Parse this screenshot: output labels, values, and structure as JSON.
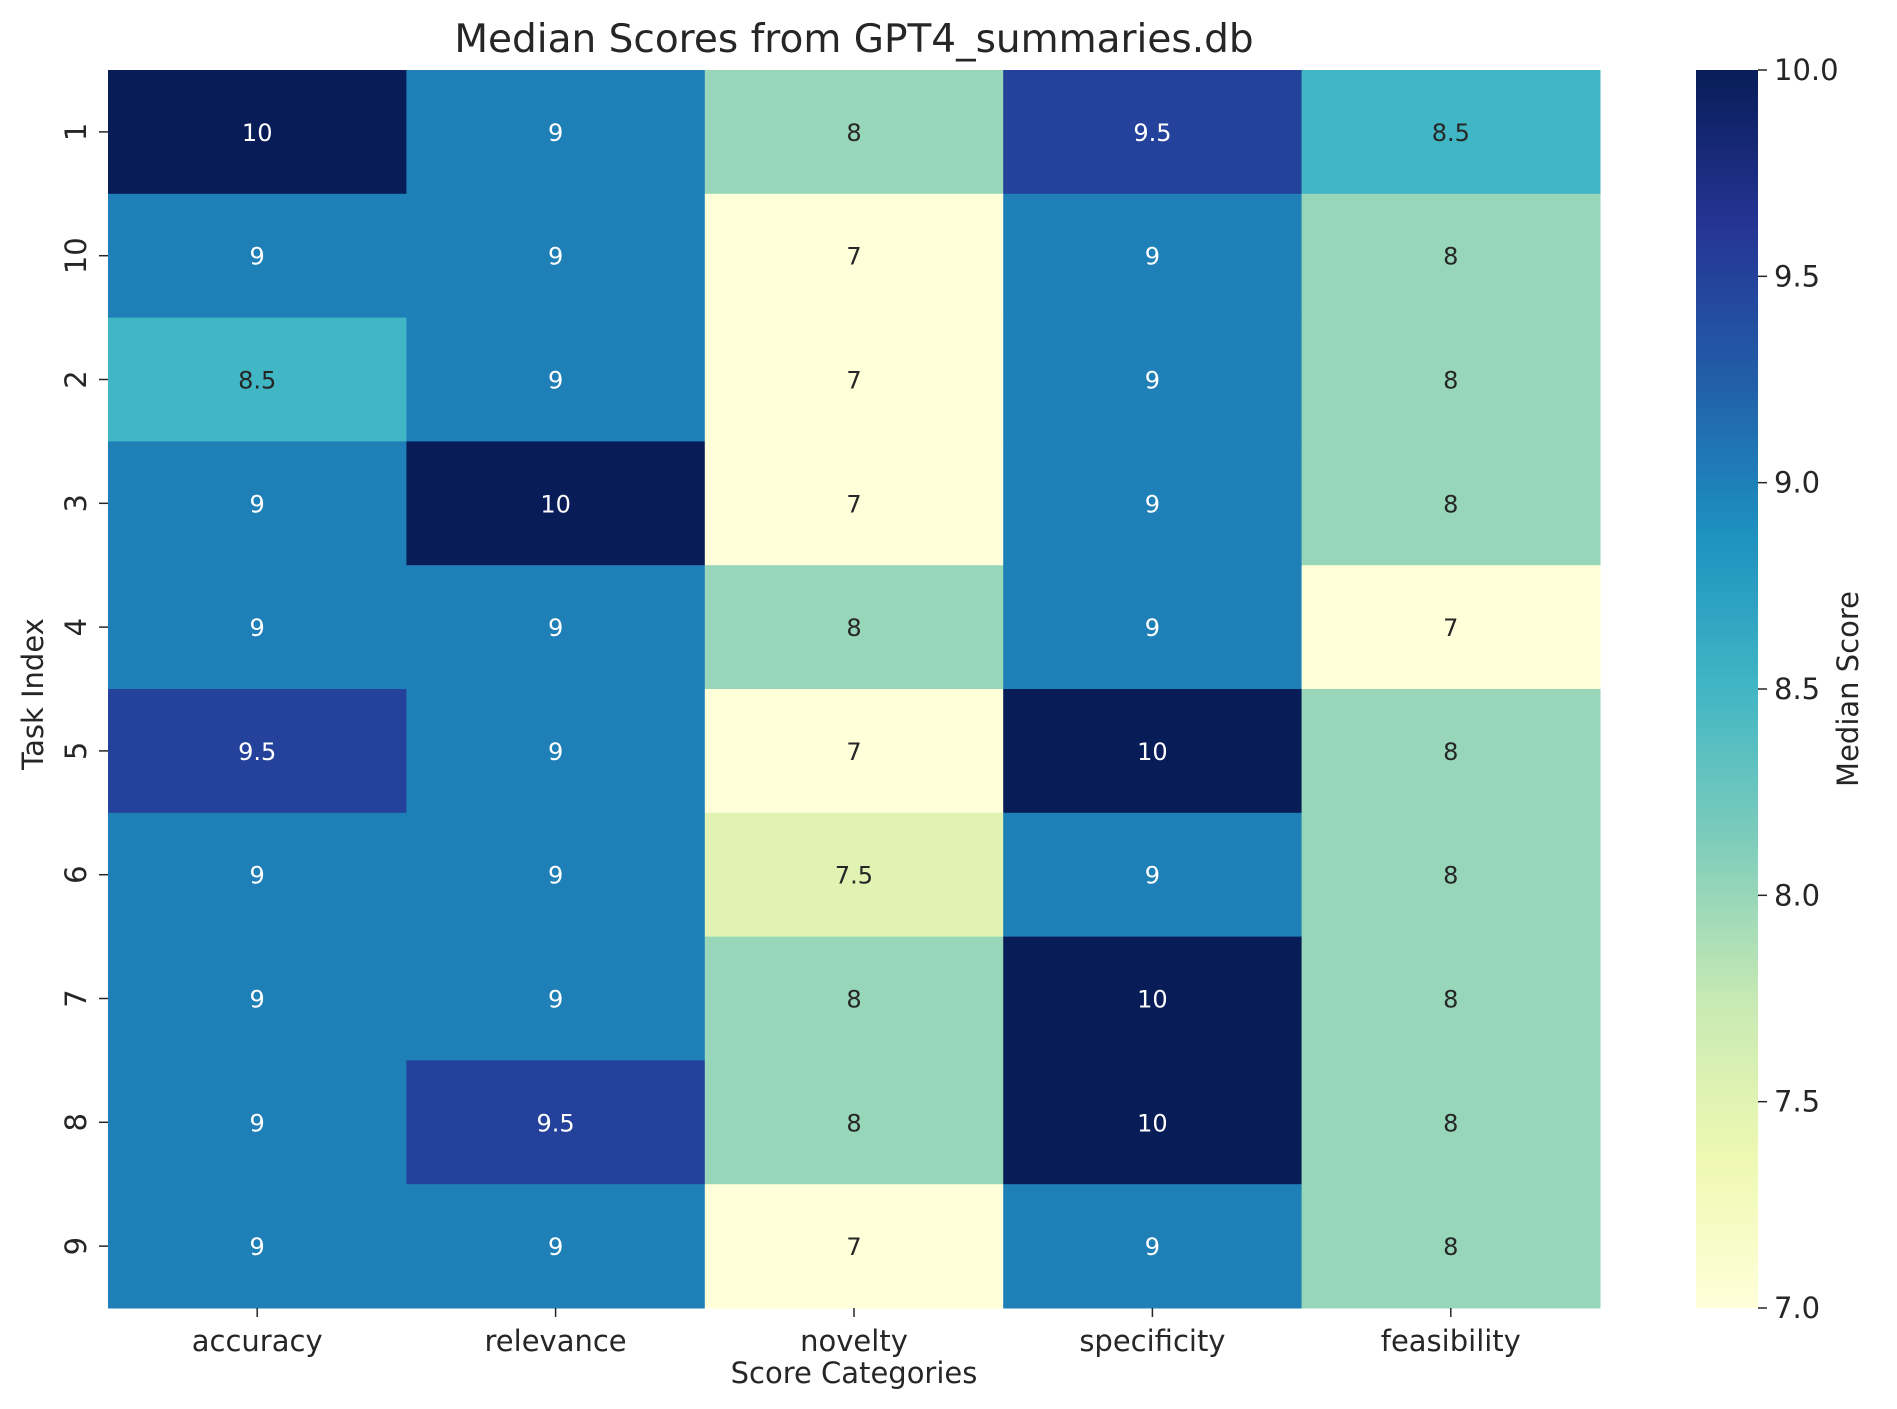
{
  "chart_data": {
    "type": "heatmap",
    "title": "Median Scores from GPT4_summaries.db",
    "xlabel": "Score Categories",
    "ylabel": "Task Index",
    "x_categories": [
      "accuracy",
      "relevance",
      "novelty",
      "specificity",
      "feasibility"
    ],
    "y_categories": [
      "1",
      "10",
      "2",
      "3",
      "4",
      "5",
      "6",
      "7",
      "8",
      "9"
    ],
    "values": [
      [
        10,
        9,
        8,
        9.5,
        8.5
      ],
      [
        9,
        9,
        7,
        9,
        8
      ],
      [
        8.5,
        9,
        7,
        9,
        8
      ],
      [
        9,
        10,
        7,
        9,
        8
      ],
      [
        9,
        9,
        8,
        9,
        7
      ],
      [
        9.5,
        9,
        7,
        10,
        8
      ],
      [
        9,
        9,
        7.5,
        9,
        8
      ],
      [
        9,
        9,
        8,
        10,
        8
      ],
      [
        9,
        9.5,
        8,
        10,
        8
      ],
      [
        9,
        9,
        7,
        9,
        8
      ]
    ],
    "value_labels": [
      [
        "10",
        "9",
        "8",
        "9.5",
        "8.5"
      ],
      [
        "9",
        "9",
        "7",
        "9",
        "8"
      ],
      [
        "8.5",
        "9",
        "7",
        "9",
        "8"
      ],
      [
        "9",
        "10",
        "7",
        "9",
        "8"
      ],
      [
        "9",
        "9",
        "8",
        "9",
        "7"
      ],
      [
        "9.5",
        "9",
        "7",
        "10",
        "8"
      ],
      [
        "9",
        "9",
        "7.5",
        "9",
        "8"
      ],
      [
        "9",
        "9",
        "8",
        "10",
        "8"
      ],
      [
        "9",
        "9.5",
        "8",
        "10",
        "8"
      ],
      [
        "9",
        "9",
        "7",
        "9",
        "8"
      ]
    ],
    "colorbar": {
      "label": "Median Score",
      "range": [
        7.0,
        10.0
      ],
      "ticks": [
        7.0,
        7.5,
        8.0,
        8.5,
        9.0,
        9.5,
        10.0
      ],
      "tick_labels": [
        "7.0",
        "7.5",
        "8.0",
        "8.5",
        "9.0",
        "9.5",
        "10.0"
      ],
      "colormap": "YlGnBu",
      "color_stops": [
        "#ffffd9",
        "#edf8b1",
        "#c7e9b4",
        "#7fcdbb",
        "#41b6c4",
        "#1d91c0",
        "#225ea8",
        "#253494",
        "#081d58"
      ]
    }
  }
}
